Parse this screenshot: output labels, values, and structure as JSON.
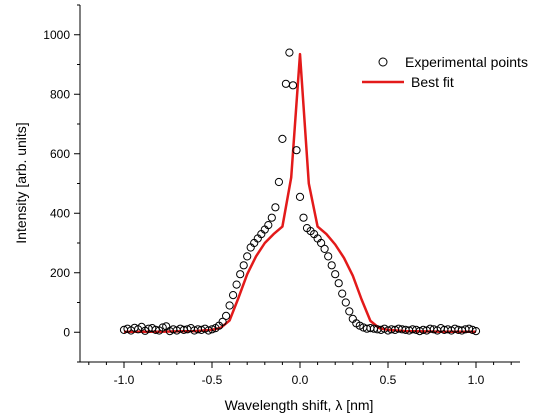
{
  "chart_data": {
    "type": "scatter",
    "xlabel": "Wavelength shift, λ [nm]",
    "ylabel": "Intensity [arb. units]",
    "xlim": [
      -1.25,
      1.25
    ],
    "ylim": [
      -100,
      1100
    ],
    "xticks": [
      -1.0,
      -0.5,
      0.0,
      0.5,
      1.0
    ],
    "xtick_labels": [
      "-1.0",
      "-0.5",
      "0.0",
      "0.5",
      "1.0"
    ],
    "yticks": [
      0,
      200,
      400,
      600,
      800,
      1000
    ],
    "ytick_labels": [
      "0",
      "200",
      "400",
      "600",
      "800",
      "1000"
    ],
    "grid": false,
    "legend": "top-right",
    "series": [
      {
        "name": "Experimental points",
        "kind": "scatter",
        "marker": "open-circle",
        "color": "#000000",
        "x": [
          -1.0,
          -0.98,
          -0.96,
          -0.94,
          -0.92,
          -0.9,
          -0.88,
          -0.86,
          -0.84,
          -0.82,
          -0.8,
          -0.78,
          -0.76,
          -0.74,
          -0.72,
          -0.7,
          -0.68,
          -0.66,
          -0.64,
          -0.62,
          -0.6,
          -0.58,
          -0.56,
          -0.54,
          -0.52,
          -0.5,
          -0.48,
          -0.46,
          -0.44,
          -0.42,
          -0.4,
          -0.38,
          -0.36,
          -0.34,
          -0.32,
          -0.3,
          -0.28,
          -0.26,
          -0.24,
          -0.22,
          -0.2,
          -0.18,
          -0.16,
          -0.14,
          -0.12,
          -0.1,
          -0.08,
          -0.06,
          -0.04,
          -0.02,
          0.0,
          0.02,
          0.04,
          0.06,
          0.08,
          0.1,
          0.12,
          0.14,
          0.16,
          0.18,
          0.2,
          0.22,
          0.24,
          0.26,
          0.28,
          0.3,
          0.32,
          0.34,
          0.36,
          0.38,
          0.4,
          0.42,
          0.44,
          0.46,
          0.48,
          0.5,
          0.52,
          0.54,
          0.56,
          0.58,
          0.6,
          0.62,
          0.64,
          0.66,
          0.68,
          0.7,
          0.72,
          0.74,
          0.76,
          0.78,
          0.8,
          0.82,
          0.84,
          0.86,
          0.88,
          0.9,
          0.92,
          0.94,
          0.96,
          0.98,
          1.0
        ],
        "y": [
          8,
          12,
          6,
          15,
          10,
          18,
          5,
          12,
          14,
          8,
          6,
          16,
          20,
          4,
          10,
          6,
          12,
          8,
          10,
          14,
          6,
          10,
          8,
          12,
          6,
          10,
          14,
          22,
          35,
          55,
          90,
          125,
          160,
          195,
          225,
          255,
          285,
          300,
          315,
          330,
          345,
          360,
          385,
          420,
          505,
          650,
          835,
          940,
          830,
          612,
          455,
          385,
          350,
          340,
          330,
          315,
          300,
          280,
          255,
          225,
          195,
          165,
          130,
          100,
          70,
          45,
          30,
          22,
          16,
          12,
          14,
          12,
          10,
          8,
          12,
          6,
          10,
          8,
          12,
          10,
          8,
          6,
          10,
          8,
          4,
          8,
          6,
          12,
          10,
          6,
          14,
          8,
          10,
          6,
          12,
          8,
          6,
          10,
          12,
          8,
          4
        ]
      },
      {
        "name": "Best fit",
        "kind": "line",
        "color": "#e31a1a",
        "x": [
          -1.0,
          -0.9,
          -0.8,
          -0.7,
          -0.6,
          -0.5,
          -0.45,
          -0.4,
          -0.35,
          -0.3,
          -0.25,
          -0.2,
          -0.15,
          -0.1,
          -0.05,
          0.0,
          0.05,
          0.1,
          0.15,
          0.2,
          0.25,
          0.3,
          0.35,
          0.4,
          0.45,
          0.5,
          0.6,
          0.7,
          0.8,
          0.9,
          1.0
        ],
        "y": [
          2,
          2,
          2,
          3,
          4,
          8,
          15,
          40,
          115,
          195,
          255,
          300,
          330,
          355,
          520,
          935,
          500,
          355,
          330,
          295,
          250,
          190,
          110,
          38,
          14,
          8,
          4,
          3,
          2,
          2,
          2
        ]
      }
    ]
  }
}
